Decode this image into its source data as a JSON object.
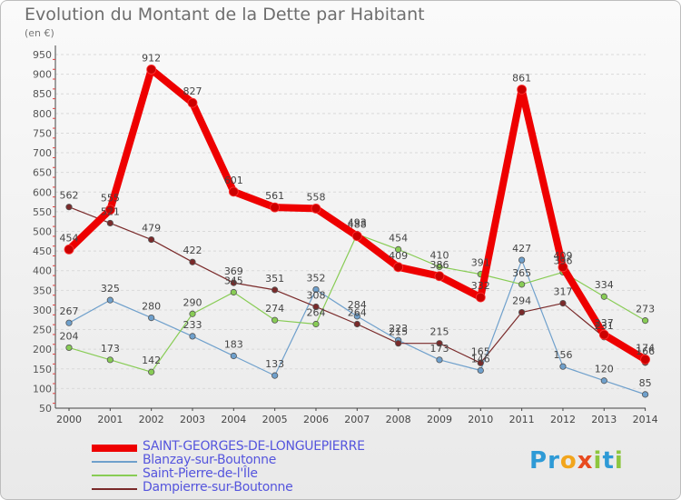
{
  "title": "Evolution du Montant de la Dette par Habitant",
  "unit": "(en €)",
  "logo": {
    "text": "Proxiti",
    "letters": [
      {
        "ch": "P",
        "color": "#2e9ad6"
      },
      {
        "ch": "r",
        "color": "#2e9ad6"
      },
      {
        "ch": "o",
        "color": "#f2a51c"
      },
      {
        "ch": "x",
        "color": "#e84a1f"
      },
      {
        "ch": "i",
        "color": "#8dc63f"
      },
      {
        "ch": "t",
        "color": "#2e9ad6"
      },
      {
        "ch": "i",
        "color": "#8dc63f"
      }
    ]
  },
  "chart_data": {
    "type": "line",
    "title": "Evolution du Montant de la Dette par Habitant",
    "ylabel": "(en €)",
    "xlabel": "",
    "x": [
      "2000",
      "2001",
      "2002",
      "2003",
      "2004",
      "2005",
      "2006",
      "2007",
      "2008",
      "2009",
      "2010",
      "2011",
      "2012",
      "2013",
      "2014"
    ],
    "ylim": [
      50,
      950
    ],
    "yticks": [
      50,
      100,
      150,
      200,
      250,
      300,
      350,
      400,
      450,
      500,
      550,
      600,
      650,
      700,
      750,
      800,
      850,
      900,
      950
    ],
    "grid": "horizontal dashed",
    "legend_position": "bottom-left",
    "series": [
      {
        "name": "SAINT-GEORGES-DE-LONGUEPIERRE",
        "color": "#ee0000",
        "width": 8,
        "values": [
          454,
          555,
          912,
          827,
          601,
          561,
          558,
          488,
          409,
          386,
          332,
          861,
          409,
          237,
          174
        ]
      },
      {
        "name": "Blanzay-sur-Boutonne",
        "color": "#6fa0cc",
        "width": 1.2,
        "values": [
          267,
          325,
          280,
          233,
          183,
          133,
          352,
          284,
          223,
          173,
          146,
          427,
          156,
          120,
          85
        ]
      },
      {
        "name": "Saint-Pierre-de-l'Île",
        "color": "#88cc55",
        "width": 1.2,
        "values": [
          204,
          173,
          142,
          290,
          345,
          274,
          264,
          493,
          454,
          410,
          391,
          365,
          396,
          334,
          273
        ]
      },
      {
        "name": "Dampierre-sur-Boutonne",
        "color": "#7a2a2a",
        "width": 1.2,
        "values": [
          562,
          521,
          479,
          422,
          369,
          351,
          308,
          264,
          215,
          215,
          165,
          294,
          317,
          231,
          166
        ]
      }
    ]
  }
}
